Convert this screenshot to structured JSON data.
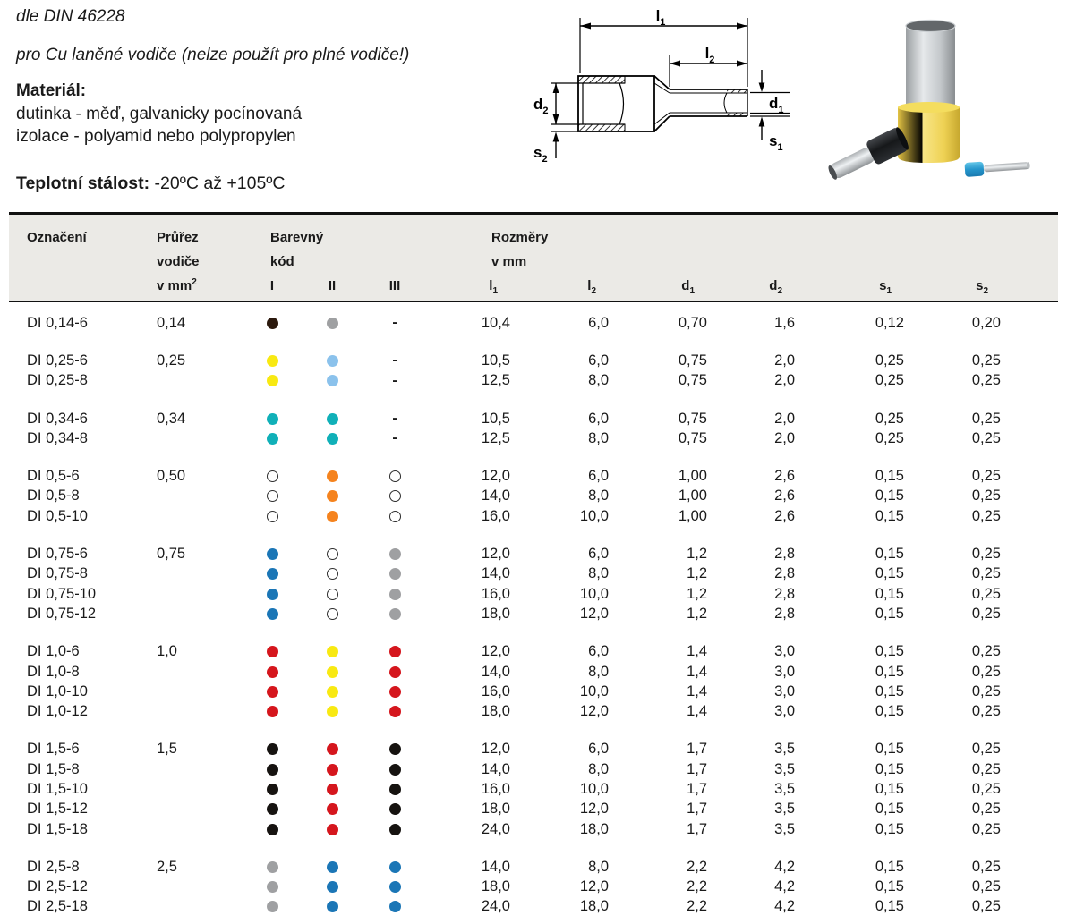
{
  "intro": {
    "standard": "dle DIN 46228",
    "usage": "pro Cu laněné vodiče (nelze použít pro plné vodiče!)",
    "material_label": "Materiál:",
    "material_line1": "dutinka - měď, galvanicky pocínovaná",
    "material_line2": "izolace - polyamid nebo polypropylen",
    "temp_label": "Teplotní stálost:",
    "temp_value": " -20ºC až +105ºC"
  },
  "diagram": {
    "labels": {
      "l1": {
        "base": "l",
        "sub": "1"
      },
      "l2": {
        "base": "l",
        "sub": "2"
      },
      "d1": {
        "base": "d",
        "sub": "1"
      },
      "d2": {
        "base": "d",
        "sub": "2"
      },
      "s1": {
        "base": "s",
        "sub": "1"
      },
      "s2": {
        "base": "s",
        "sub": "2"
      }
    }
  },
  "photo": {
    "items": [
      "yellow-ferrule",
      "black-ferrule",
      "blue-ferrule"
    ]
  },
  "table": {
    "header": {
      "col_designation": "Označení",
      "col_cross_line1": "Průřez",
      "col_cross_line2": "vodiče",
      "col_cross_line3": "v mm",
      "col_cross_sup": "2",
      "col_color_line1": "Barevný",
      "col_color_line2": "kód",
      "color_cols": [
        "I",
        "II",
        "III"
      ],
      "col_dim_line1": "Rozměry",
      "col_dim_line2": "v mm",
      "dim_cols": [
        {
          "base": "l",
          "sub": "1"
        },
        {
          "base": "l",
          "sub": "2"
        },
        {
          "base": "d",
          "sub": "1"
        },
        {
          "base": "d",
          "sub": "2"
        },
        {
          "base": "s",
          "sub": "1"
        },
        {
          "base": "s",
          "sub": "2"
        }
      ]
    },
    "dot_colors": {
      "brown": "#2c190d",
      "grey": "#9fa0a2",
      "yellow": "#f8e912",
      "lightblue": "#8bc2ec",
      "teal": "#10b0b8",
      "orange": "#f5831e",
      "blue": "#1b76b6",
      "red": "#d5161d",
      "black": "#161310",
      "white": "#ffffff"
    },
    "groups": [
      {
        "cross_section": "0,14",
        "rows": [
          {
            "name": "DI 0,14-6",
            "codes": [
              "brown",
              "grey",
              "dash"
            ],
            "dims": [
              "10,4",
              "6,0",
              "0,70",
              "1,6",
              "0,12",
              "0,20"
            ]
          }
        ]
      },
      {
        "cross_section": "0,25",
        "rows": [
          {
            "name": "DI 0,25-6",
            "codes": [
              "yellow",
              "lightblue",
              "dash"
            ],
            "dims": [
              "10,5",
              "6,0",
              "0,75",
              "2,0",
              "0,25",
              "0,25"
            ]
          },
          {
            "name": "DI 0,25-8",
            "codes": [
              "yellow",
              "lightblue",
              "dash"
            ],
            "dims": [
              "12,5",
              "8,0",
              "0,75",
              "2,0",
              "0,25",
              "0,25"
            ]
          }
        ]
      },
      {
        "cross_section": "0,34",
        "rows": [
          {
            "name": "DI 0,34-6",
            "codes": [
              "teal",
              "teal",
              "dash"
            ],
            "dims": [
              "10,5",
              "6,0",
              "0,75",
              "2,0",
              "0,25",
              "0,25"
            ]
          },
          {
            "name": "DI 0,34-8",
            "codes": [
              "teal",
              "teal",
              "dash"
            ],
            "dims": [
              "12,5",
              "8,0",
              "0,75",
              "2,0",
              "0,25",
              "0,25"
            ]
          }
        ]
      },
      {
        "cross_section": "0,50",
        "rows": [
          {
            "name": "DI 0,5-6",
            "codes": [
              "white",
              "orange",
              "white"
            ],
            "dims": [
              "12,0",
              "6,0",
              "1,00",
              "2,6",
              "0,15",
              "0,25"
            ]
          },
          {
            "name": "DI 0,5-8",
            "codes": [
              "white",
              "orange",
              "white"
            ],
            "dims": [
              "14,0",
              "8,0",
              "1,00",
              "2,6",
              "0,15",
              "0,25"
            ]
          },
          {
            "name": "DI 0,5-10",
            "codes": [
              "white",
              "orange",
              "white"
            ],
            "dims": [
              "16,0",
              "10,0",
              "1,00",
              "2,6",
              "0,15",
              "0,25"
            ]
          }
        ]
      },
      {
        "cross_section": "0,75",
        "rows": [
          {
            "name": "DI 0,75-6",
            "codes": [
              "blue",
              "white",
              "grey"
            ],
            "dims": [
              "12,0",
              "6,0",
              "1,2",
              "2,8",
              "0,15",
              "0,25"
            ]
          },
          {
            "name": "DI 0,75-8",
            "codes": [
              "blue",
              "white",
              "grey"
            ],
            "dims": [
              "14,0",
              "8,0",
              "1,2",
              "2,8",
              "0,15",
              "0,25"
            ]
          },
          {
            "name": "DI 0,75-10",
            "codes": [
              "blue",
              "white",
              "grey"
            ],
            "dims": [
              "16,0",
              "10,0",
              "1,2",
              "2,8",
              "0,15",
              "0,25"
            ]
          },
          {
            "name": "DI 0,75-12",
            "codes": [
              "blue",
              "white",
              "grey"
            ],
            "dims": [
              "18,0",
              "12,0",
              "1,2",
              "2,8",
              "0,15",
              "0,25"
            ]
          }
        ]
      },
      {
        "cross_section": "1,0",
        "rows": [
          {
            "name": "DI 1,0-6",
            "codes": [
              "red",
              "yellow",
              "red"
            ],
            "dims": [
              "12,0",
              "6,0",
              "1,4",
              "3,0",
              "0,15",
              "0,25"
            ]
          },
          {
            "name": "DI 1,0-8",
            "codes": [
              "red",
              "yellow",
              "red"
            ],
            "dims": [
              "14,0",
              "8,0",
              "1,4",
              "3,0",
              "0,15",
              "0,25"
            ]
          },
          {
            "name": "DI 1,0-10",
            "codes": [
              "red",
              "yellow",
              "red"
            ],
            "dims": [
              "16,0",
              "10,0",
              "1,4",
              "3,0",
              "0,15",
              "0,25"
            ]
          },
          {
            "name": "DI 1,0-12",
            "codes": [
              "red",
              "yellow",
              "red"
            ],
            "dims": [
              "18,0",
              "12,0",
              "1,4",
              "3,0",
              "0,15",
              "0,25"
            ]
          }
        ]
      },
      {
        "cross_section": "1,5",
        "rows": [
          {
            "name": "DI 1,5-6",
            "codes": [
              "black",
              "red",
              "black"
            ],
            "dims": [
              "12,0",
              "6,0",
              "1,7",
              "3,5",
              "0,15",
              "0,25"
            ]
          },
          {
            "name": "DI 1,5-8",
            "codes": [
              "black",
              "red",
              "black"
            ],
            "dims": [
              "14,0",
              "8,0",
              "1,7",
              "3,5",
              "0,15",
              "0,25"
            ]
          },
          {
            "name": "DI 1,5-10",
            "codes": [
              "black",
              "red",
              "black"
            ],
            "dims": [
              "16,0",
              "10,0",
              "1,7",
              "3,5",
              "0,15",
              "0,25"
            ]
          },
          {
            "name": "DI 1,5-12",
            "codes": [
              "black",
              "red",
              "black"
            ],
            "dims": [
              "18,0",
              "12,0",
              "1,7",
              "3,5",
              "0,15",
              "0,25"
            ]
          },
          {
            "name": "DI 1,5-18",
            "codes": [
              "black",
              "red",
              "black"
            ],
            "dims": [
              "24,0",
              "18,0",
              "1,7",
              "3,5",
              "0,15",
              "0,25"
            ]
          }
        ]
      },
      {
        "cross_section": "2,5",
        "rows": [
          {
            "name": "DI 2,5-8",
            "codes": [
              "grey",
              "blue",
              "blue"
            ],
            "dims": [
              "14,0",
              "8,0",
              "2,2",
              "4,2",
              "0,15",
              "0,25"
            ]
          },
          {
            "name": "DI 2,5-12",
            "codes": [
              "grey",
              "blue",
              "blue"
            ],
            "dims": [
              "18,0",
              "12,0",
              "2,2",
              "4,2",
              "0,15",
              "0,25"
            ]
          },
          {
            "name": "DI 2,5-18",
            "codes": [
              "grey",
              "blue",
              "blue"
            ],
            "dims": [
              "24,0",
              "18,0",
              "2,2",
              "4,2",
              "0,15",
              "0,25"
            ]
          }
        ]
      }
    ]
  }
}
